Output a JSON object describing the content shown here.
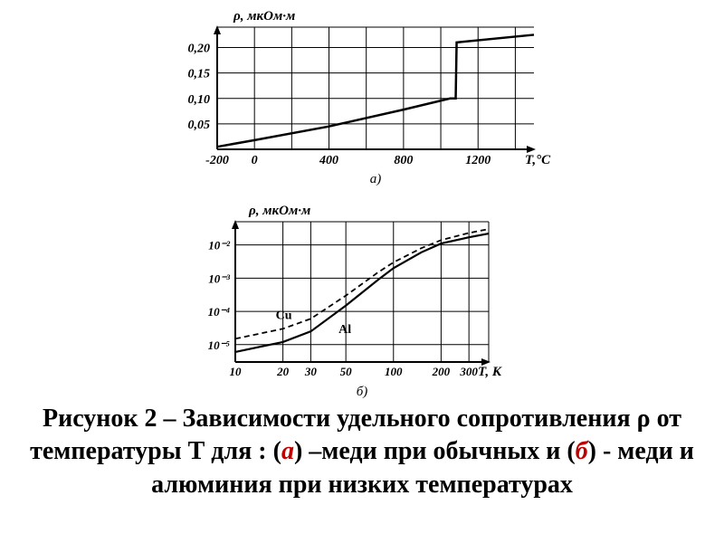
{
  "chart_a": {
    "type": "line",
    "ylabel": "ρ, мкОм·м",
    "xlabel": "Т,°С",
    "sublabel": "а)",
    "x_ticks": [
      -200,
      0,
      400,
      800,
      1200
    ],
    "y_ticks": [
      0.05,
      0.1,
      0.15,
      0.2
    ],
    "y_tick_labels": [
      "0,05",
      "0,10",
      "0,15",
      "0,20"
    ],
    "xlim": [
      -200,
      1500
    ],
    "ylim": [
      0,
      0.24
    ],
    "series": [
      {
        "x": -200,
        "y": 0.005
      },
      {
        "x": 0,
        "y": 0.018
      },
      {
        "x": 400,
        "y": 0.045
      },
      {
        "x": 800,
        "y": 0.078
      },
      {
        "x": 1050,
        "y": 0.1
      },
      {
        "x": 1080,
        "y": 0.1
      },
      {
        "x": 1085,
        "y": 0.21
      },
      {
        "x": 1500,
        "y": 0.225
      }
    ],
    "line_color": "#000000",
    "line_width": 2.5,
    "grid_color": "#000000",
    "grid_width": 1,
    "axis_color": "#000000",
    "axis_width": 2,
    "label_fontsize": 15,
    "tick_fontsize": 14
  },
  "chart_b": {
    "type": "line-loglog",
    "ylabel": "ρ, мкОм·м",
    "xlabel": "Т, К",
    "sublabel": "б)",
    "x_ticks": [
      10,
      20,
      30,
      50,
      100,
      200,
      300
    ],
    "x_tick_labels": [
      "10",
      "20",
      "30",
      "50",
      "100",
      "200",
      "300"
    ],
    "y_ticks": [
      1e-05,
      0.0001,
      0.001,
      0.01
    ],
    "y_tick_labels": [
      "10⁻⁵",
      "10⁻⁴",
      "10⁻³",
      "10⁻²"
    ],
    "xlim_log": [
      10,
      400
    ],
    "ylim_log": [
      3e-06,
      0.05
    ],
    "series_cu": {
      "label": "Cu",
      "color": "#000000",
      "width": 2.2,
      "dash": "none",
      "points": [
        {
          "x": 10,
          "y": 6e-06
        },
        {
          "x": 20,
          "y": 1.2e-05
        },
        {
          "x": 30,
          "y": 2.5e-05
        },
        {
          "x": 50,
          "y": 0.00015
        },
        {
          "x": 80,
          "y": 0.0009
        },
        {
          "x": 100,
          "y": 0.002
        },
        {
          "x": 150,
          "y": 0.006
        },
        {
          "x": 200,
          "y": 0.011
        },
        {
          "x": 300,
          "y": 0.017
        },
        {
          "x": 400,
          "y": 0.022
        }
      ]
    },
    "series_al": {
      "label": "Al",
      "color": "#000000",
      "width": 1.8,
      "dash": "6,4",
      "points": [
        {
          "x": 10,
          "y": 1.5e-05
        },
        {
          "x": 20,
          "y": 3e-05
        },
        {
          "x": 30,
          "y": 6e-05
        },
        {
          "x": 50,
          "y": 0.0003
        },
        {
          "x": 80,
          "y": 0.0015
        },
        {
          "x": 100,
          "y": 0.003
        },
        {
          "x": 150,
          "y": 0.008
        },
        {
          "x": 200,
          "y": 0.014
        },
        {
          "x": 300,
          "y": 0.023
        },
        {
          "x": 400,
          "y": 0.03
        }
      ]
    },
    "grid_color": "#000000",
    "grid_width": 1,
    "axis_color": "#000000",
    "axis_width": 2,
    "label_fontsize": 15,
    "tick_fontsize": 13
  },
  "caption": {
    "prefix": "Рисунок 2 – Зависимости удельного сопротивления ρ от температуры Т для : (",
    "a_letter": "а",
    "mid1": ") –меди при обычных и (",
    "b_letter": "б",
    "mid2": ") -  меди и алюминия при низких температурах"
  }
}
